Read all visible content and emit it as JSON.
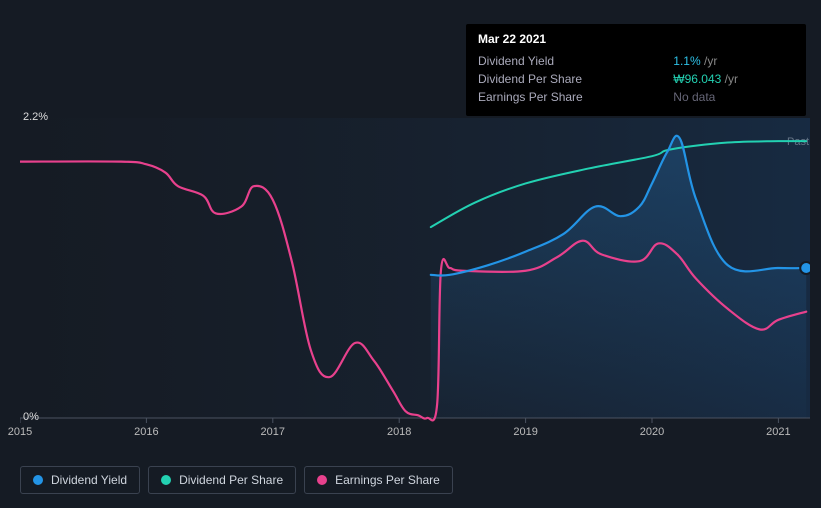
{
  "tooltip": {
    "date": "Mar 22 2021",
    "rows": [
      {
        "label": "Dividend Yield",
        "value": "1.1%",
        "suffix": "/yr",
        "value_color": "#2dc0e6"
      },
      {
        "label": "Dividend Per Share",
        "value": "₩96.043",
        "suffix": "/yr",
        "value_color": "#23d1b2"
      },
      {
        "label": "Earnings Per Share",
        "value": "No data",
        "suffix": "",
        "value_color": "#667080"
      }
    ]
  },
  "right_badge_label": "Past",
  "chart": {
    "type": "line",
    "background_color": "#151b24",
    "plot_gradient_from": "rgba(30,40,55,0.0)",
    "plot_gradient_to": "rgba(25,55,90,0.55)",
    "ylim": [
      0,
      2.2
    ],
    "y_ticks": [
      {
        "v": 0,
        "label": "0%"
      },
      {
        "v": 2.2,
        "label": "2.2%"
      }
    ],
    "xlim": [
      2015,
      2021.25
    ],
    "x_ticks": [
      2015,
      2016,
      2017,
      2018,
      2019,
      2020,
      2021
    ],
    "axis_color": "#4a5260",
    "grid_color": "#2b3340",
    "label_fontsize": 11,
    "label_color": "#cfd5de",
    "series": [
      {
        "name": "Dividend Yield",
        "color": "#2394e6",
        "fill": true,
        "fill_color_top": "rgba(44,140,220,0.25)",
        "fill_color_bottom": "rgba(44,140,220,0.02)",
        "line_width": 2.2,
        "x": [
          2018.25,
          2018.4,
          2018.7,
          2019.0,
          2019.3,
          2019.55,
          2019.75,
          2019.9,
          2020.0,
          2020.12,
          2020.22,
          2020.35,
          2020.6,
          2021.0,
          2021.22
        ],
        "y": [
          1.05,
          1.05,
          1.12,
          1.22,
          1.35,
          1.55,
          1.48,
          1.55,
          1.72,
          1.95,
          2.05,
          1.6,
          1.12,
          1.1,
          1.1
        ],
        "marker_end": {
          "x": 2021.22,
          "y": 1.1,
          "size": 12
        }
      },
      {
        "name": "Dividend Per Share",
        "color": "#23d1b2",
        "fill": false,
        "line_width": 2.0,
        "x": [
          2018.25,
          2018.6,
          2019.0,
          2019.5,
          2020.0,
          2020.15,
          2020.6,
          2021.0,
          2021.22
        ],
        "y": [
          1.4,
          1.58,
          1.72,
          1.83,
          1.92,
          1.97,
          2.02,
          2.03,
          2.03
        ]
      },
      {
        "name": "Earnings Per Share",
        "color": "#e8418d",
        "fill": false,
        "line_width": 2.2,
        "x": [
          2015.0,
          2015.8,
          2016.0,
          2016.15,
          2016.25,
          2016.45,
          2016.55,
          2016.75,
          2016.85,
          2017.0,
          2017.15,
          2017.3,
          2017.45,
          2017.65,
          2017.8,
          2017.95,
          2018.05,
          2018.15,
          2018.22,
          2018.3,
          2018.33,
          2018.4,
          2018.5,
          2019.0,
          2019.25,
          2019.45,
          2019.6,
          2019.9,
          2020.05,
          2020.2,
          2020.35,
          2020.6,
          2020.85,
          2021.0,
          2021.22
        ],
        "y": [
          1.88,
          1.88,
          1.86,
          1.8,
          1.7,
          1.63,
          1.5,
          1.55,
          1.7,
          1.6,
          1.15,
          0.5,
          0.3,
          0.55,
          0.42,
          0.2,
          0.05,
          0.02,
          0.0,
          0.1,
          1.08,
          1.1,
          1.08,
          1.08,
          1.18,
          1.3,
          1.2,
          1.15,
          1.28,
          1.2,
          1.02,
          0.8,
          0.65,
          0.72,
          0.78
        ]
      }
    ],
    "legend": [
      {
        "label": "Dividend Yield",
        "color": "#2394e6"
      },
      {
        "label": "Dividend Per Share",
        "color": "#23d1b2"
      },
      {
        "label": "Earnings Per Share",
        "color": "#e8418d"
      }
    ]
  }
}
